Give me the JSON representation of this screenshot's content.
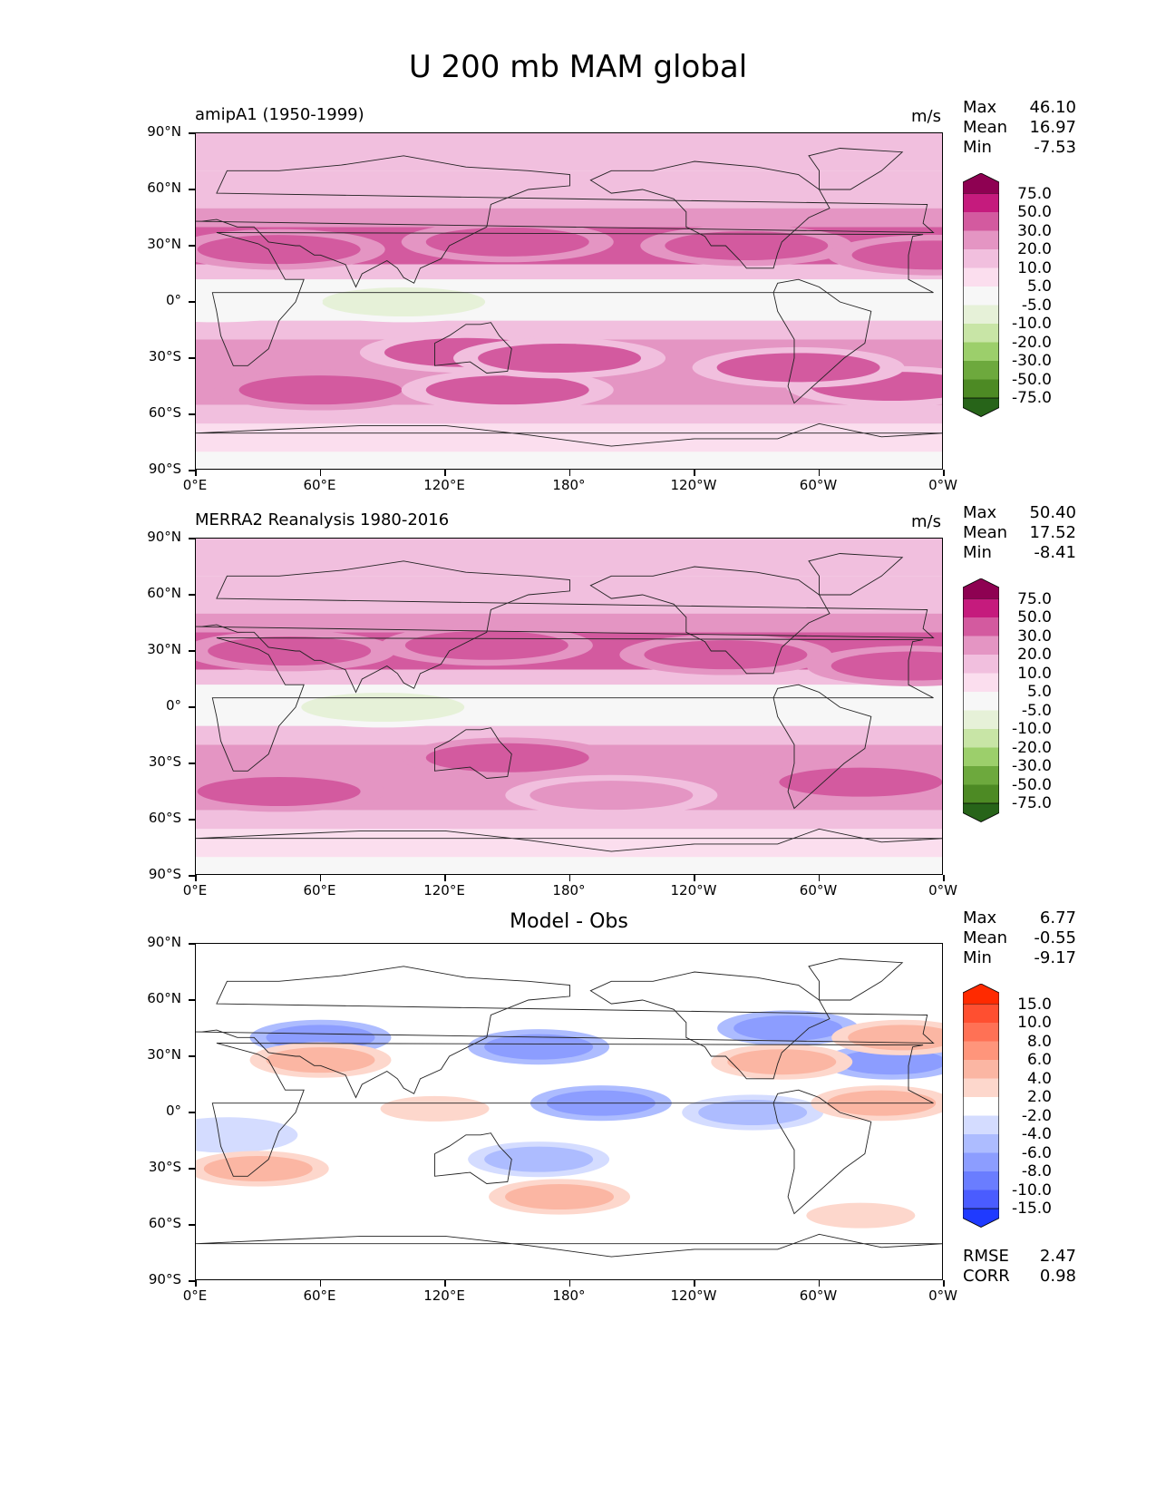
{
  "figure_title": "U 200 mb MAM global",
  "chart_data": [
    {
      "type": "heatmap",
      "title": "amipA1 (1950-1999)",
      "units": "m/s",
      "stats": {
        "Max": "46.10",
        "Mean": "16.97",
        "Min": "-7.53"
      },
      "xlabel": "",
      "ylabel": "",
      "x_ticks": [
        "0°E",
        "60°E",
        "120°E",
        "180°",
        "120°W",
        "60°W",
        "0°W"
      ],
      "y_ticks": [
        "90°N",
        "60°N",
        "30°N",
        "0°",
        "30°S",
        "60°S",
        "90°S"
      ],
      "colorbar": {
        "levels": [
          "75.0",
          "50.0",
          "30.0",
          "20.0",
          "10.0",
          "5.0",
          "-5.0",
          "-10.0",
          "-20.0",
          "-30.0",
          "-50.0",
          "-75.0"
        ],
        "colors": [
          "#8e0152",
          "#c51b7d",
          "#d35a9f",
          "#e495c3",
          "#f1bfde",
          "#fbdeee",
          "#f7f7f7",
          "#e6f1d8",
          "#c8e5a6",
          "#9ccf6b",
          "#6da93d",
          "#4d8a24",
          "#276419"
        ]
      },
      "features": [
        {
          "lat": 28,
          "lon": 40,
          "value": 40
        },
        {
          "lat": 32,
          "lon": 150,
          "value": 38
        },
        {
          "lat": 30,
          "lon": 265,
          "value": 40
        },
        {
          "lat": 25,
          "lon": 355,
          "value": 35
        },
        {
          "lat": -47,
          "lon": 60,
          "value": 34
        },
        {
          "lat": -47,
          "lon": 150,
          "value": 32
        },
        {
          "lat": -27,
          "lon": 130,
          "value": 33
        },
        {
          "lat": -30,
          "lon": 175,
          "value": 31
        },
        {
          "lat": -45,
          "lon": 335,
          "value": 33
        },
        {
          "lat": -35,
          "lon": 290,
          "value": 31
        },
        {
          "lat": 0,
          "lon": 100,
          "value": -6
        },
        {
          "lat": 0,
          "lon": 10,
          "value": -5
        }
      ]
    },
    {
      "type": "heatmap",
      "title": "MERRA2 Reanalysis 1980-2016",
      "units": "m/s",
      "stats": {
        "Max": "50.40",
        "Mean": "17.52",
        "Min": "-8.41"
      },
      "xlabel": "",
      "ylabel": "",
      "x_ticks": [
        "0°E",
        "60°E",
        "120°E",
        "180°",
        "120°W",
        "60°W",
        "0°W"
      ],
      "y_ticks": [
        "90°N",
        "60°N",
        "30°N",
        "0°",
        "30°S",
        "60°S",
        "90°S"
      ],
      "colorbar": {
        "levels": [
          "75.0",
          "50.0",
          "30.0",
          "20.0",
          "10.0",
          "5.0",
          "-5.0",
          "-10.0",
          "-20.0",
          "-30.0",
          "-50.0",
          "-75.0"
        ],
        "colors": [
          "#8e0152",
          "#c51b7d",
          "#d35a9f",
          "#e495c3",
          "#f1bfde",
          "#fbdeee",
          "#f7f7f7",
          "#e6f1d8",
          "#c8e5a6",
          "#9ccf6b",
          "#6da93d",
          "#4d8a24",
          "#276419"
        ]
      },
      "features": [
        {
          "lat": 30,
          "lon": 45,
          "value": 40
        },
        {
          "lat": 33,
          "lon": 140,
          "value": 45
        },
        {
          "lat": 28,
          "lon": 255,
          "value": 38
        },
        {
          "lat": 22,
          "lon": 345,
          "value": 36
        },
        {
          "lat": -45,
          "lon": 40,
          "value": 36
        },
        {
          "lat": -27,
          "lon": 150,
          "value": 35
        },
        {
          "lat": -40,
          "lon": 320,
          "value": 36
        },
        {
          "lat": -47,
          "lon": 200,
          "value": 26
        },
        {
          "lat": 0,
          "lon": 90,
          "value": -8
        }
      ]
    },
    {
      "type": "heatmap",
      "title": "Model - Obs",
      "units": "",
      "stats": {
        "Max": "6.77",
        "Mean": "-0.55",
        "Min": "-9.17"
      },
      "metrics": {
        "RMSE": "2.47",
        "CORR": "0.98"
      },
      "xlabel": "",
      "ylabel": "",
      "x_ticks": [
        "0°E",
        "60°E",
        "120°E",
        "180°",
        "120°W",
        "60°W",
        "0°W"
      ],
      "y_ticks": [
        "90°N",
        "60°N",
        "30°N",
        "0°",
        "30°S",
        "60°S",
        "90°S"
      ],
      "colorbar": {
        "levels": [
          "15.0",
          "10.0",
          "8.0",
          "6.0",
          "4.0",
          "2.0",
          "-2.0",
          "-4.0",
          "-6.0",
          "-8.0",
          "-10.0",
          "-15.0"
        ],
        "colors": [
          "#ff2a00",
          "#ff4f30",
          "#ff7155",
          "#ff957b",
          "#fbb6a3",
          "#fdd7cc",
          "#ffffff",
          "#d4dcff",
          "#adbcff",
          "#8c9dff",
          "#6a7dff",
          "#4a5cff",
          "#1f3aff"
        ]
      },
      "features": [
        {
          "lat": 40,
          "lon": 60,
          "value": -8
        },
        {
          "lat": 35,
          "lon": 165,
          "value": -7
        },
        {
          "lat": 45,
          "lon": 285,
          "value": -7
        },
        {
          "lat": 27,
          "lon": 335,
          "value": -7
        },
        {
          "lat": 5,
          "lon": 195,
          "value": -7
        },
        {
          "lat": 0,
          "lon": 268,
          "value": -6
        },
        {
          "lat": -25,
          "lon": 165,
          "value": -5
        },
        {
          "lat": -12,
          "lon": 15,
          "value": -4
        },
        {
          "lat": 27,
          "lon": 282,
          "value": 5
        },
        {
          "lat": 40,
          "lon": 340,
          "value": 4
        },
        {
          "lat": 28,
          "lon": 60,
          "value": 4
        },
        {
          "lat": 5,
          "lon": 330,
          "value": 5
        },
        {
          "lat": -45,
          "lon": 175,
          "value": 5
        },
        {
          "lat": -30,
          "lon": 30,
          "value": 5
        },
        {
          "lat": 2,
          "lon": 115,
          "value": 3
        },
        {
          "lat": -55,
          "lon": 320,
          "value": 3
        }
      ]
    }
  ]
}
